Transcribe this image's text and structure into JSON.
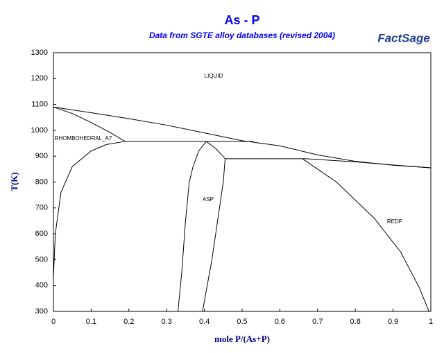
{
  "chart_data": {
    "type": "line",
    "title": "As - P",
    "subtitle": "Data from SGTE alloy databases (revised 2004)",
    "logo": "FactSage",
    "x_label": "mole P/(As+P)",
    "y_label": "T(K)",
    "annotations": [
      "LIQUID",
      "RHOMBOHEDRAL_A7",
      "ASP",
      "REDP"
    ],
    "xlim": [
      0,
      1
    ],
    "xticks": [
      0,
      0.1,
      0.2,
      0.3,
      0.4,
      0.5,
      0.6,
      0.7,
      0.8,
      0.9,
      1
    ],
    "ylim": [
      300,
      1300
    ],
    "yticks": [
      300,
      400,
      500,
      600,
      700,
      800,
      900,
      1000,
      1100,
      1200,
      1300
    ],
    "color": "#000000",
    "series": [
      {
        "x": [
          0,
          0.1,
          0.2,
          0.3,
          0.4,
          0.5,
          0.6,
          0.7,
          0.8,
          0.9,
          1
        ],
        "values": [
          1090,
          1068,
          1045,
          1020,
          990,
          960,
          940,
          905,
          880,
          865,
          855
        ]
      },
      {
        "x": [
          0,
          0.05,
          0.1,
          0.15,
          0.19
        ],
        "values": [
          1090,
          1065,
          1030,
          992,
          957
        ]
      },
      {
        "x": [
          0.19,
          0.53
        ],
        "values": [
          957,
          957
        ]
      },
      {
        "x": [
          0.19,
          0.14,
          0.1,
          0.05,
          0.02,
          0.005,
          0
        ],
        "values": [
          957,
          945,
          920,
          860,
          760,
          600,
          430
        ]
      },
      {
        "x": [
          0.405,
          0.385,
          0.37,
          0.36,
          0.35,
          0.34,
          0.33
        ],
        "values": [
          957,
          920,
          860,
          800,
          650,
          450,
          300
        ]
      },
      {
        "x": [
          0.405,
          0.43,
          0.455
        ],
        "values": [
          957,
          930,
          890
        ]
      },
      {
        "x": [
          0.455,
          0.45,
          0.44,
          0.42,
          0.395
        ],
        "values": [
          890,
          800,
          700,
          500,
          300
        ]
      },
      {
        "x": [
          0.455,
          0.67
        ],
        "values": [
          890,
          890
        ]
      },
      {
        "x": [
          0.67,
          0.8,
          0.9,
          1
        ],
        "values": [
          890,
          878,
          866,
          855
        ]
      },
      {
        "x": [
          0.66,
          0.75,
          0.85,
          0.92,
          0.97,
          0.995
        ],
        "values": [
          890,
          800,
          660,
          530,
          390,
          300
        ]
      }
    ]
  }
}
